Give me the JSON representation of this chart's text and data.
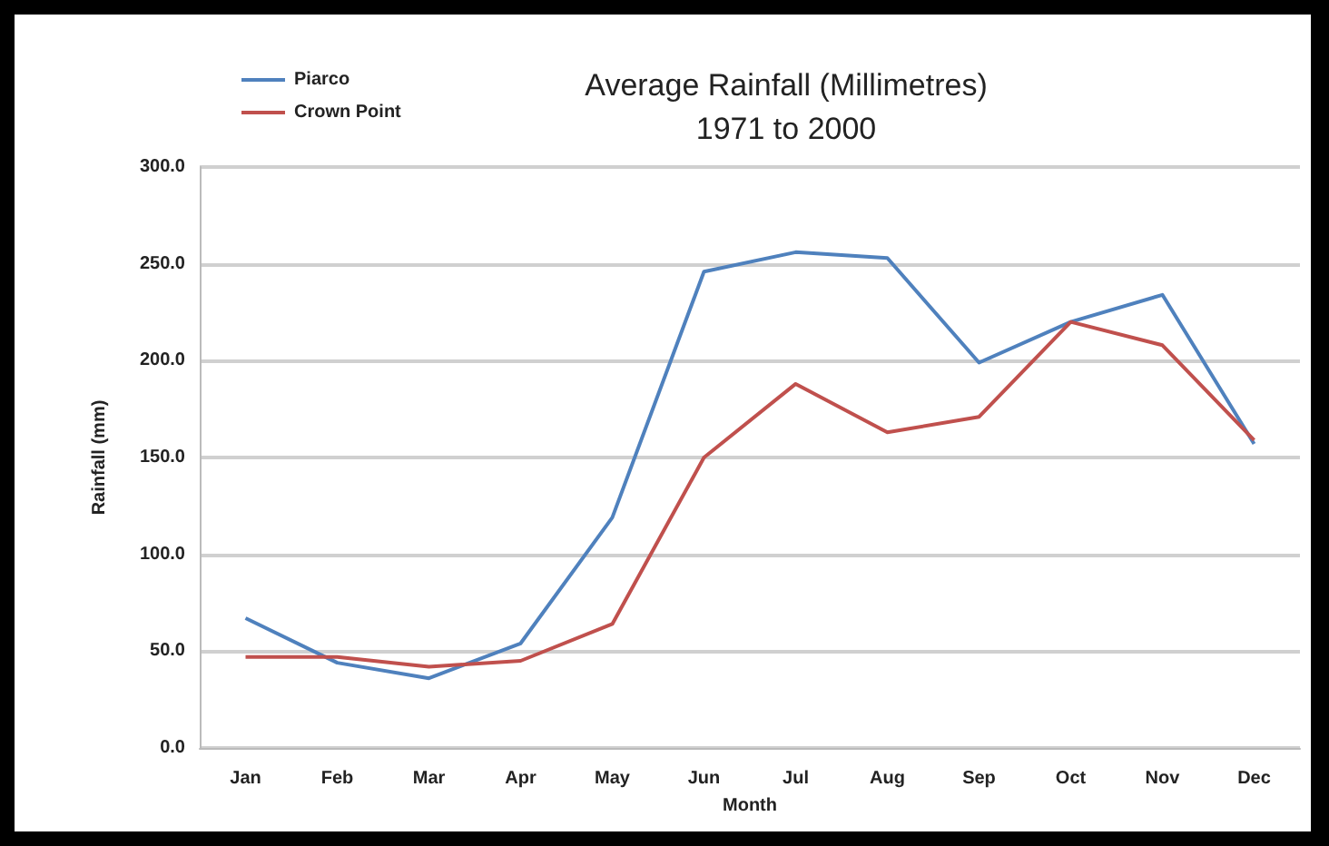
{
  "chart_data": {
    "type": "line",
    "title": "Average Rainfall (Millimetres)\n1971 to 2000",
    "xlabel": "Month",
    "ylabel": "Rainfall (mm)",
    "categories": [
      "Jan",
      "Feb",
      "Mar",
      "Apr",
      "May",
      "Jun",
      "Jul",
      "Aug",
      "Sep",
      "Oct",
      "Nov",
      "Dec"
    ],
    "series": [
      {
        "name": "Piarco",
        "color": "#4f81bd",
        "values": [
          67,
          44,
          36,
          54,
          119,
          246,
          256,
          253,
          199,
          220,
          234,
          157
        ]
      },
      {
        "name": "Crown Point",
        "color": "#c0504d",
        "values": [
          47,
          47,
          42,
          45,
          64,
          150,
          188,
          163,
          171,
          220,
          208,
          159
        ]
      }
    ],
    "ylim": [
      0,
      300
    ],
    "yticks": [
      {
        "value": 0,
        "label": "0.0"
      },
      {
        "value": 50,
        "label": "50.0"
      },
      {
        "value": 100,
        "label": "100.0"
      },
      {
        "value": 150,
        "label": "150.0"
      },
      {
        "value": 200,
        "label": "200.0"
      },
      {
        "value": 250,
        "label": "250.0"
      },
      {
        "value": 300,
        "label": "300.0"
      }
    ],
    "grid": "y",
    "legend": "top left",
    "marker": "none",
    "line_style": "solid"
  }
}
